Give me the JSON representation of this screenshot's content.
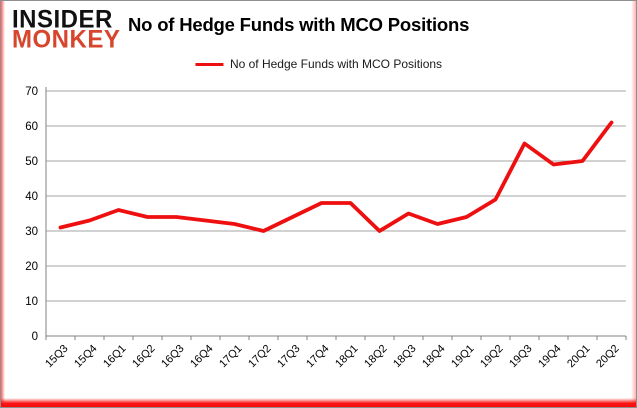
{
  "header": {
    "logo_line1": "INSIDER",
    "logo_line2": "MONKEY",
    "title": "No of Hedge Funds with MCO Positions"
  },
  "legend": {
    "label": "No of Hedge Funds with MCO Positions"
  },
  "colors": {
    "series_red": "#ee1010",
    "logo_red": "#d6452c",
    "logo_black": "#111111",
    "gridline_gray": "#a6a6a6",
    "axis_gray": "#808080"
  },
  "chart_data": {
    "type": "line",
    "title": "No of Hedge Funds with MCO Positions",
    "categories": [
      "15Q3",
      "15Q4",
      "16Q1",
      "16Q2",
      "16Q3",
      "16Q4",
      "17Q1",
      "17Q2",
      "17Q3",
      "17Q4",
      "18Q1",
      "18Q2",
      "18Q3",
      "18Q4",
      "19Q1",
      "19Q2",
      "19Q3",
      "19Q4",
      "20Q1",
      "20Q2"
    ],
    "series": [
      {
        "name": "No of Hedge Funds with MCO Positions",
        "color": "#ee1010",
        "values": [
          31,
          33,
          36,
          34,
          34,
          33,
          32,
          30,
          34,
          38,
          38,
          30,
          35,
          32,
          34,
          39,
          55,
          49,
          50,
          61
        ]
      }
    ],
    "xlabel": "",
    "ylabel": "",
    "ylim": [
      0,
      70
    ],
    "yticks": [
      0,
      10,
      20,
      30,
      40,
      50,
      60,
      70
    ],
    "grid": true,
    "legend_position": "top"
  }
}
